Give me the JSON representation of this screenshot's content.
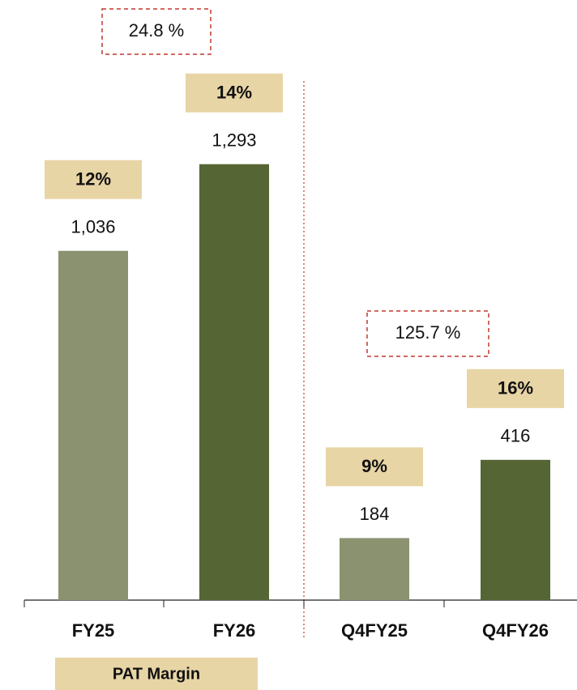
{
  "chart_data": {
    "type": "bar",
    "categories": [
      "FY25",
      "FY26",
      "Q4FY25",
      "Q4FY26"
    ],
    "values": [
      1036,
      1293,
      184,
      416
    ],
    "value_labels": [
      "1,036",
      "1,293",
      "184",
      "416"
    ],
    "colors": [
      "#8a9270",
      "#566534",
      "#8a9270",
      "#566534"
    ],
    "ylim": [
      0,
      1780
    ],
    "margins": [
      12,
      14,
      9,
      16
    ],
    "margin_labels": [
      "12%",
      "14%",
      "9%",
      "16%"
    ],
    "legend": "PAT Margin",
    "growth": [
      {
        "value": 24.8,
        "label": "24.8 %"
      },
      {
        "value": 125.7,
        "label": "125.7 %"
      }
    ]
  }
}
